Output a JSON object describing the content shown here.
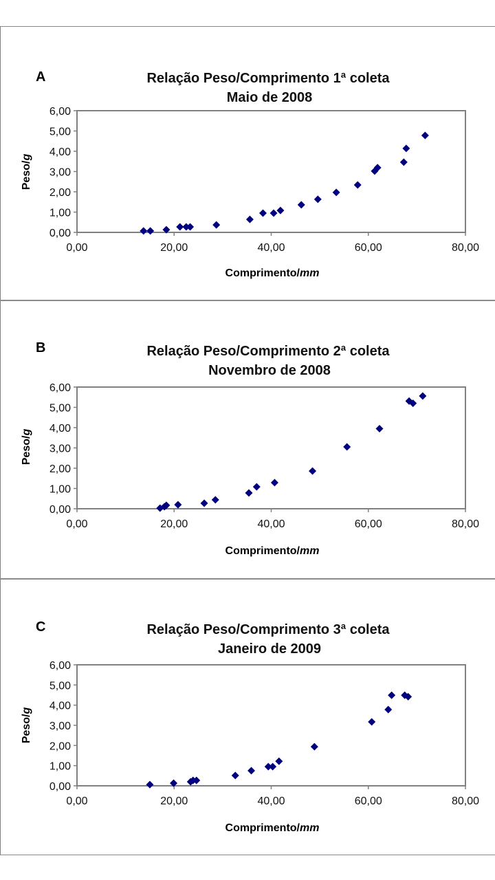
{
  "chart_data": [
    {
      "type": "scatter",
      "panel": "A",
      "title": [
        "Relação Peso/Comprimento 1ª coleta",
        "Maio de 2008"
      ],
      "xlabel": "Comprimento/",
      "xlabel_italic": "mm",
      "ylabel": "Peso/",
      "ylabel_italic": "g",
      "xlim": [
        0,
        80
      ],
      "ylim": [
        0,
        6
      ],
      "xticks": [
        "0,00",
        "20,00",
        "40,00",
        "60,00",
        "80,00"
      ],
      "yticks": [
        "0,00",
        "1,00",
        "2,00",
        "3,00",
        "4,00",
        "5,00",
        "6,00"
      ],
      "xtick_values": [
        0,
        20,
        40,
        60,
        80
      ],
      "ytick_values": [
        0,
        1,
        2,
        3,
        4,
        5,
        6
      ],
      "grid": false,
      "legend": "none",
      "marker": "diamond",
      "color": "#00007f",
      "points": [
        [
          13.7,
          0.07
        ],
        [
          15.1,
          0.07
        ],
        [
          18.4,
          0.13
        ],
        [
          21.2,
          0.27
        ],
        [
          22.5,
          0.27
        ],
        [
          23.3,
          0.27
        ],
        [
          28.7,
          0.37
        ],
        [
          35.6,
          0.64
        ],
        [
          38.3,
          0.95
        ],
        [
          40.5,
          0.95
        ],
        [
          41.9,
          1.08
        ],
        [
          46.2,
          1.36
        ],
        [
          49.6,
          1.63
        ],
        [
          53.4,
          1.97
        ],
        [
          57.8,
          2.34
        ],
        [
          61.3,
          3.02
        ],
        [
          61.9,
          3.19
        ],
        [
          67.3,
          3.46
        ],
        [
          67.8,
          4.14
        ],
        [
          71.7,
          4.78
        ]
      ]
    },
    {
      "type": "scatter",
      "panel": "B",
      "title": [
        "Relação Peso/Comprimento 2ª coleta",
        "Novembro de 2008"
      ],
      "xlabel": "Comprimento/",
      "xlabel_italic": "mm",
      "ylabel": "Peso/",
      "ylabel_italic": "g",
      "xlim": [
        0,
        80
      ],
      "ylim": [
        0,
        6
      ],
      "xticks": [
        "0,00",
        "20,00",
        "40,00",
        "60,00",
        "80,00"
      ],
      "yticks": [
        "0,00",
        "1,00",
        "2,00",
        "3,00",
        "4,00",
        "5,00",
        "6,00"
      ],
      "xtick_values": [
        0,
        20,
        40,
        60,
        80
      ],
      "ytick_values": [
        0,
        1,
        2,
        3,
        4,
        5,
        6
      ],
      "grid": false,
      "legend": "none",
      "marker": "diamond",
      "color": "#00007f",
      "points": [
        [
          17.1,
          0.03
        ],
        [
          18.0,
          0.1
        ],
        [
          18.4,
          0.17
        ],
        [
          20.8,
          0.2
        ],
        [
          26.2,
          0.27
        ],
        [
          28.5,
          0.44
        ],
        [
          35.4,
          0.78
        ],
        [
          37.0,
          1.08
        ],
        [
          40.7,
          1.29
        ],
        [
          48.5,
          1.86
        ],
        [
          55.6,
          3.05
        ],
        [
          62.3,
          3.95
        ],
        [
          68.4,
          5.31
        ],
        [
          69.2,
          5.2
        ],
        [
          71.2,
          5.56
        ]
      ]
    },
    {
      "type": "scatter",
      "panel": "C",
      "title": [
        "Relação Peso/Comprimento 3ª coleta",
        "Janeiro de 2009"
      ],
      "xlabel": "Comprimento/",
      "xlabel_italic": "mm",
      "ylabel": "Peso/",
      "ylabel_italic": "g",
      "xlim": [
        0,
        80
      ],
      "ylim": [
        0,
        6
      ],
      "xticks": [
        "0,00",
        "20,00",
        "40,00",
        "60,00",
        "80,00"
      ],
      "yticks": [
        "0,00",
        "1,00",
        "2,00",
        "3,00",
        "4,00",
        "5,00",
        "6,00"
      ],
      "xtick_values": [
        0,
        20,
        40,
        60,
        80
      ],
      "ytick_values": [
        0,
        1,
        2,
        3,
        4,
        5,
        6
      ],
      "grid": false,
      "legend": "none",
      "marker": "diamond",
      "color": "#00007f",
      "points": [
        [
          15.0,
          0.06
        ],
        [
          19.9,
          0.13
        ],
        [
          23.4,
          0.2
        ],
        [
          23.9,
          0.27
        ],
        [
          24.6,
          0.27
        ],
        [
          32.6,
          0.51
        ],
        [
          35.9,
          0.75
        ],
        [
          39.4,
          0.95
        ],
        [
          40.3,
          0.95
        ],
        [
          41.6,
          1.22
        ],
        [
          48.9,
          1.94
        ],
        [
          60.7,
          3.17
        ],
        [
          64.1,
          3.78
        ],
        [
          64.8,
          4.49
        ],
        [
          67.5,
          4.49
        ],
        [
          68.2,
          4.42
        ]
      ]
    }
  ]
}
